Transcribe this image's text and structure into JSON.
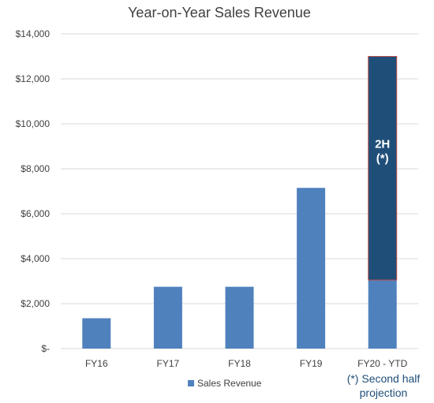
{
  "chart_data": {
    "type": "bar",
    "title": "Year-on-Year Sales Revenue",
    "categories": [
      "FY16",
      "FY17",
      "FY18",
      "FY19",
      "FY20 - YTD"
    ],
    "series": [
      {
        "name": "Sales Revenue",
        "values": [
          1350,
          2750,
          2750,
          7150,
          3050
        ]
      }
    ],
    "projection": {
      "category": "FY20 - YTD",
      "base": 3050,
      "top": 13000,
      "label_line1": "2H",
      "label_line2": "(*)"
    },
    "y_ticks": [
      {
        "value": 0,
        "label": "$-"
      },
      {
        "value": 2000,
        "label": "$2,000"
      },
      {
        "value": 4000,
        "label": "$4,000"
      },
      {
        "value": 6000,
        "label": "$6,000"
      },
      {
        "value": 8000,
        "label": "$8,000"
      },
      {
        "value": 10000,
        "label": "$10,000"
      },
      {
        "value": 12000,
        "label": "$12,000"
      },
      {
        "value": 14000,
        "label": "$14,000"
      }
    ],
    "ylim": [
      0,
      14000
    ],
    "grid": true,
    "legend_position": "bottom",
    "footnote_line1": "(*) Second half",
    "footnote_line2": "projection",
    "colors": {
      "bar": "#4f81bd",
      "projection": "#1f4e79",
      "projection_border": "#c0504d",
      "grid": "#d9d9d9",
      "note": "#1f4e79"
    }
  }
}
